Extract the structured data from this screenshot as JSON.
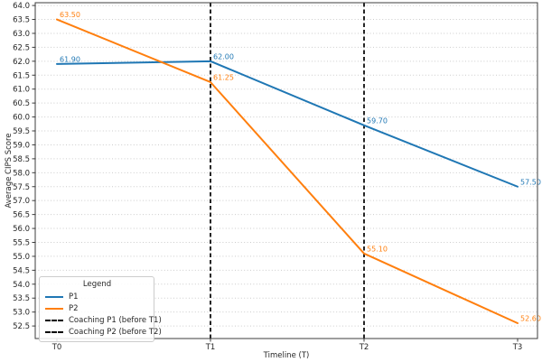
{
  "chart_data": {
    "type": "line",
    "title": "",
    "xlabel": "Timeline (T)",
    "ylabel": "Average CIPS Score",
    "x_categories": [
      "T0",
      "T1",
      "T2",
      "T3"
    ],
    "y_ticks": [
      "52.5",
      "53.0",
      "53.5",
      "54.0",
      "54.5",
      "55.0",
      "55.5",
      "56.0",
      "56.5",
      "57.0",
      "57.5",
      "58.0",
      "58.5",
      "59.0",
      "59.5",
      "60.0",
      "60.5",
      "61.0",
      "61.5",
      "62.0",
      "62.5",
      "63.0",
      "63.5",
      "64.0"
    ],
    "ylim": [
      52.05,
      64.1
    ],
    "grid": "horizontal-dotted",
    "grid_color": "#cccccc",
    "spine_color": "#3c3c3c",
    "tick_label_color": "#262626",
    "series": [
      {
        "name": "P1",
        "color": "#1f77b4",
        "style": "solid",
        "values": [
          61.9,
          62.0,
          59.7,
          57.5
        ],
        "point_labels": [
          "61.90",
          "62.00",
          "59.70",
          "57.50"
        ]
      },
      {
        "name": "P2",
        "color": "#ff7f0e",
        "style": "solid",
        "values": [
          63.5,
          61.25,
          55.1,
          52.6
        ],
        "point_labels": [
          "63.50",
          "61.25",
          "55.10",
          "52.60"
        ]
      }
    ],
    "vlines": [
      {
        "x": "T1",
        "color": "#000000",
        "style": "dashed",
        "label": "Coaching P1 (before T1)"
      },
      {
        "x": "T2",
        "color": "#000000",
        "style": "dashed",
        "label": "Coaching P2 (before T2)"
      }
    ],
    "legend": {
      "title": "Legend",
      "position": "lower-left",
      "items": [
        {
          "label": "P1",
          "color": "#1f77b4",
          "style": "solid"
        },
        {
          "label": "P2",
          "color": "#ff7f0e",
          "style": "solid"
        },
        {
          "label": "Coaching P1 (before T1)",
          "color": "#000000",
          "style": "dashed"
        },
        {
          "label": "Coaching P2 (before T2)",
          "color": "#000000",
          "style": "dashed"
        }
      ]
    }
  }
}
